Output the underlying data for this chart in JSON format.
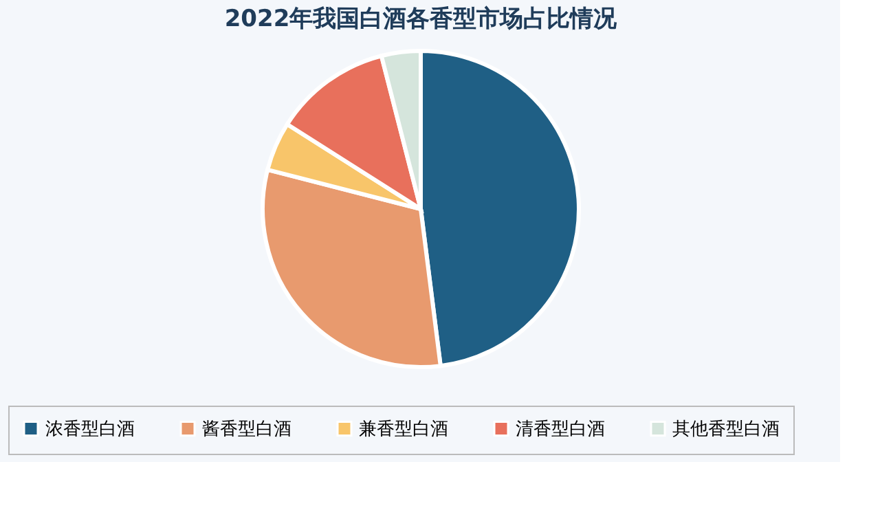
{
  "chart_data": {
    "type": "pie",
    "title": "2022年我国白酒各香型市场占比情况",
    "categories": [
      "浓香型白酒",
      "酱香型白酒",
      "兼香型白酒",
      "清香型白酒",
      "其他香型白酒"
    ],
    "values": [
      48,
      31,
      5,
      12,
      4
    ],
    "colors": [
      "#1f5f85",
      "#e89a6e",
      "#f8c56a",
      "#e8705c",
      "#d5e5dc"
    ],
    "legend": "bottom"
  }
}
